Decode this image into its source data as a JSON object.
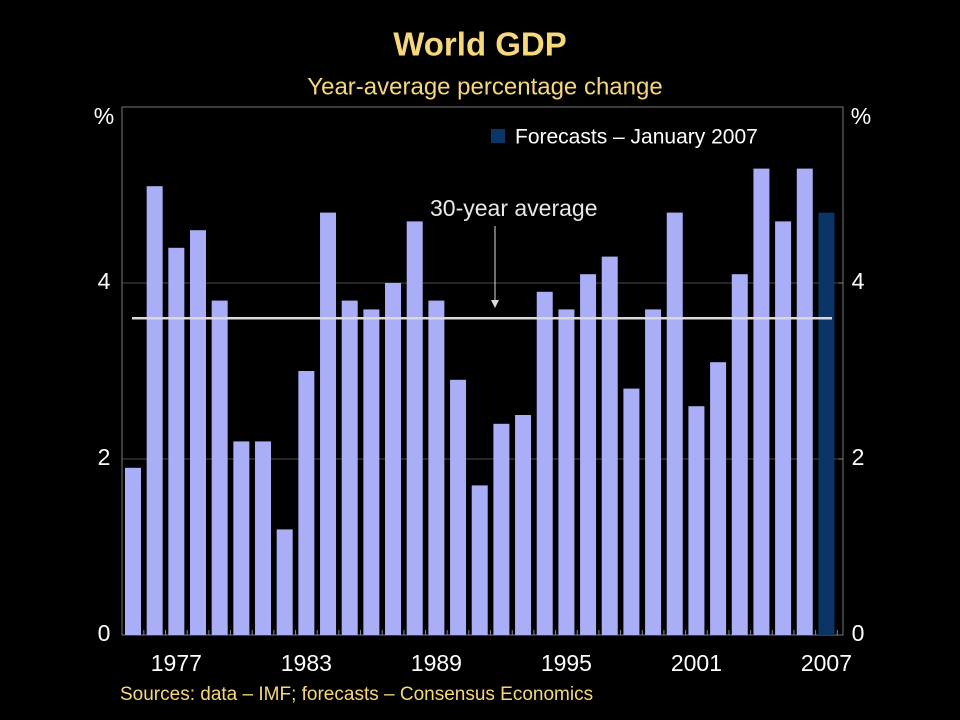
{
  "chart_data": {
    "type": "bar",
    "title": "World GDP",
    "subtitle": "Year-average percentage change",
    "y_label": "%",
    "y2_label": "%",
    "categories": [
      null,
      null,
      "1977",
      null,
      null,
      null,
      null,
      null,
      "1983",
      null,
      null,
      null,
      null,
      null,
      "1989",
      null,
      null,
      null,
      null,
      null,
      "1995",
      null,
      null,
      null,
      null,
      null,
      "2001",
      null,
      null,
      null,
      null,
      null,
      "2007"
    ],
    "series": [
      {
        "color": "#a9aef7",
        "values": [
          1.9,
          5.1,
          4.4,
          4.6,
          3.8,
          2.2,
          2.2,
          1.2,
          3.0,
          4.8,
          3.8,
          3.7,
          4.0,
          4.7,
          3.8,
          2.9,
          1.7,
          2.4,
          2.5,
          3.9,
          3.7,
          4.1,
          4.3,
          2.8,
          3.7,
          4.8,
          2.6,
          3.1,
          4.1,
          5.3,
          4.7,
          5.3,
          null
        ]
      },
      {
        "name": "Forecasts – January 2007",
        "color": "#0b3566",
        "values": [
          null,
          null,
          null,
          null,
          null,
          null,
          null,
          null,
          null,
          null,
          null,
          null,
          null,
          null,
          null,
          null,
          null,
          null,
          null,
          null,
          null,
          null,
          null,
          null,
          null,
          null,
          null,
          null,
          null,
          null,
          null,
          null,
          4.8
        ]
      }
    ],
    "ylim": [
      0,
      6
    ],
    "yticks": [
      0,
      2,
      4
    ],
    "y2lim": [
      0,
      6
    ],
    "y2ticks": [
      0,
      2,
      4
    ],
    "grid": true,
    "reference_line": {
      "label": "30-year average",
      "value": 3.6,
      "color": "#d9d9d9"
    },
    "source": "Sources: data – IMF; forecasts – Consensus Economics"
  }
}
